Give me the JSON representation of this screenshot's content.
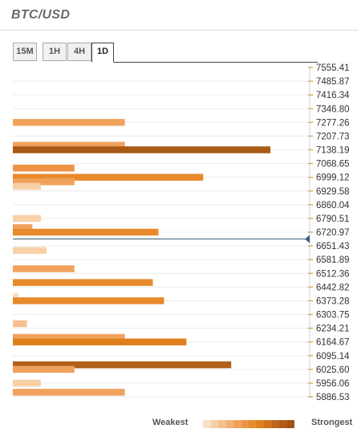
{
  "title": "BTC/USD",
  "tabs": [
    {
      "label": "15M",
      "active": false
    },
    {
      "label": "1H",
      "active": false
    },
    {
      "label": "4H",
      "active": false
    },
    {
      "label": "1D",
      "active": true
    }
  ],
  "legend": {
    "weak_label": "Weakest",
    "strong_label": "Strongest",
    "colors": [
      "#fbe0c4",
      "#f8d0a8",
      "#f5c08e",
      "#f2b074",
      "#f0a25c",
      "#ed9444",
      "#e88a2c",
      "#e07e1a",
      "#d0721a",
      "#c0661a",
      "#b05c18",
      "#9f5114"
    ]
  },
  "chart_data": {
    "type": "bar",
    "orientation": "horizontal",
    "price_axis": [
      "7555.41",
      "7485.87",
      "7416.34",
      "7346.80",
      "7277.26",
      "7207.73",
      "7138.19",
      "7068.65",
      "6999.12",
      "6929.58",
      "6860.04",
      "6790.51",
      "6720.97",
      "6651.43",
      "6581.89",
      "6512.36",
      "6442.82",
      "6373.28",
      "6303.75",
      "6234.21",
      "6164.67",
      "6095.14",
      "6025.60",
      "5956.06",
      "5886.53"
    ],
    "current_price": 6686.2,
    "bars": [
      {
        "price": 7277.26,
        "strength": 4.0,
        "color": "#f0a25c"
      },
      {
        "price": 7161.3,
        "strength": 4.0,
        "color": "#f0a25c"
      },
      {
        "price": 7138.19,
        "strength": 9.2,
        "color": "#a85a14"
      },
      {
        "price": 7045.5,
        "strength": 2.2,
        "color": "#ed9444"
      },
      {
        "price": 6999.12,
        "strength": 6.8,
        "color": "#e88a2c"
      },
      {
        "price": 6976.0,
        "strength": 2.2,
        "color": "#f0a25c"
      },
      {
        "price": 6952.7,
        "strength": 1.0,
        "color": "#f8d0a8"
      },
      {
        "price": 6790.51,
        "strength": 1.0,
        "color": "#f8d0a8"
      },
      {
        "price": 6744.1,
        "strength": 0.7,
        "color": "#f0a25c"
      },
      {
        "price": 6720.97,
        "strength": 5.2,
        "color": "#e88a2c"
      },
      {
        "price": 6628.3,
        "strength": 1.2,
        "color": "#f8d0a8"
      },
      {
        "price": 6535.5,
        "strength": 2.2,
        "color": "#f0a25c"
      },
      {
        "price": 6465.9,
        "strength": 5.0,
        "color": "#e88a2c"
      },
      {
        "price": 6396.4,
        "strength": 0.2,
        "color": "#fbe0c4"
      },
      {
        "price": 6373.28,
        "strength": 5.4,
        "color": "#e88a2c"
      },
      {
        "price": 6257.3,
        "strength": 0.5,
        "color": "#f5c08e"
      },
      {
        "price": 6187.8,
        "strength": 4.0,
        "color": "#f0a25c"
      },
      {
        "price": 6164.67,
        "strength": 6.2,
        "color": "#e07e1a"
      },
      {
        "price": 6048.8,
        "strength": 7.8,
        "color": "#b0601a"
      },
      {
        "price": 6025.6,
        "strength": 2.2,
        "color": "#f0a25c"
      },
      {
        "price": 5956.06,
        "strength": 1.0,
        "color": "#f8d0a8"
      },
      {
        "price": 5909.7,
        "strength": 4.0,
        "color": "#f0a25c"
      }
    ],
    "xlim": [
      0,
      10
    ],
    "ylim": [
      5886.53,
      7555.41
    ],
    "grid": true,
    "legend_position": "bottom-right"
  }
}
